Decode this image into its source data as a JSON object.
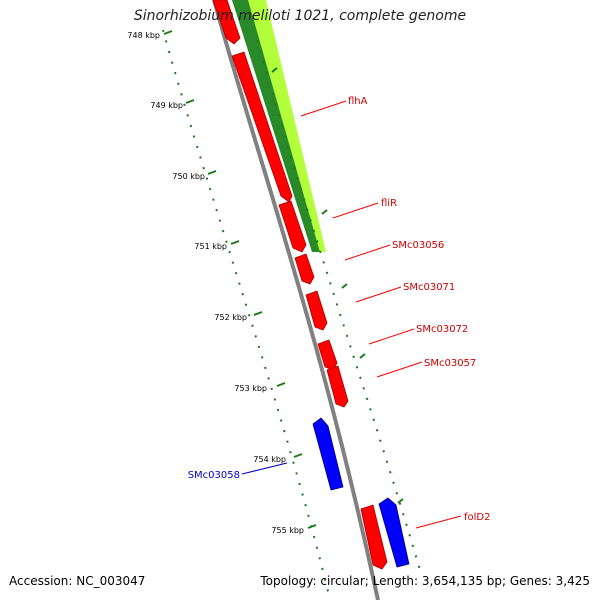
{
  "title": "Sinorhizobium meliloti 1021, complete genome",
  "footer": {
    "accession": "Accession: NC_003047",
    "summary": "Topology: circular; Length: 3,654,135 bp; Genes: 3,425"
  },
  "colors": {
    "forward_gene": "#ff0000",
    "reverse_gene": "#0000ff",
    "backbone": "#808080",
    "tick": "#1a7a1a",
    "gc_dark": "#2a8a2a",
    "gc_light": "#b4ff3c"
  },
  "scale_labels": [
    "748 kbp",
    "749 kbp",
    "750 kbp",
    "751 kbp",
    "752 kbp",
    "753 kbp",
    "754 kbp",
    "755 kbp"
  ],
  "gene_labels": [
    {
      "text": "flhA",
      "strand": "forward"
    },
    {
      "text": "fliR",
      "strand": "forward"
    },
    {
      "text": "SMc03056",
      "strand": "forward"
    },
    {
      "text": "SMc03071",
      "strand": "forward"
    },
    {
      "text": "SMc03072",
      "strand": "forward"
    },
    {
      "text": "SMc03057",
      "strand": "forward"
    },
    {
      "text": "SMc03058",
      "strand": "reverse"
    },
    {
      "text": "folD2",
      "strand": "forward"
    }
  ]
}
